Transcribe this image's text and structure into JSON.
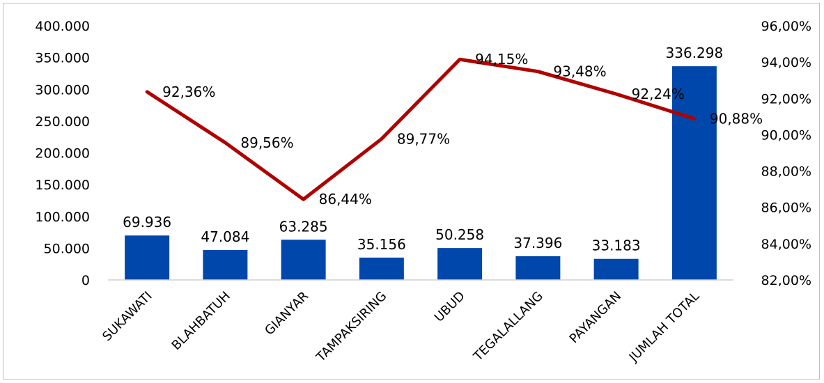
{
  "chart_data": {
    "type": "bar",
    "categories": [
      "SUKAWATI",
      "BLAHBATUH",
      "GIANYAR",
      "TAMPAKSIRING",
      "UBUD",
      "TEGALALLANG",
      "PAYANGAN",
      "JUMLAH TOTAL"
    ],
    "series": [
      {
        "type": "bar",
        "axis": "left",
        "values": [
          69936,
          47084,
          63285,
          35156,
          50258,
          37396,
          33183,
          336298
        ],
        "labels": [
          "69.936",
          "47.084",
          "63.285",
          "35.156",
          "50.258",
          "37.396",
          "33.183",
          "336.298"
        ],
        "color": "#0047ab"
      },
      {
        "type": "line",
        "axis": "right",
        "values": [
          92.36,
          89.56,
          86.44,
          89.77,
          94.15,
          93.48,
          92.24,
          90.88
        ],
        "labels": [
          "92,36%",
          "89,56%",
          "86,44%",
          "89,77%",
          "94,15%",
          "93,48%",
          "92,24%",
          "90,88%"
        ],
        "color": "#b00000"
      }
    ],
    "y_left": {
      "ylim": [
        0,
        400000
      ],
      "ticks": [
        0,
        50000,
        100000,
        150000,
        200000,
        250000,
        300000,
        350000,
        400000
      ],
      "tick_labels": [
        "0",
        "50.000",
        "100.000",
        "150.000",
        "200.000",
        "250.000",
        "300.000",
        "350.000",
        "400.000"
      ]
    },
    "y_right": {
      "ylim": [
        82,
        96
      ],
      "ticks": [
        82,
        84,
        86,
        88,
        90,
        92,
        94,
        96
      ],
      "tick_labels": [
        "82,00%",
        "84,00%",
        "86,00%",
        "88,00%",
        "90,00%",
        "92,00%",
        "94,00%",
        "96,00%"
      ]
    },
    "grid": false,
    "legend": "none"
  }
}
